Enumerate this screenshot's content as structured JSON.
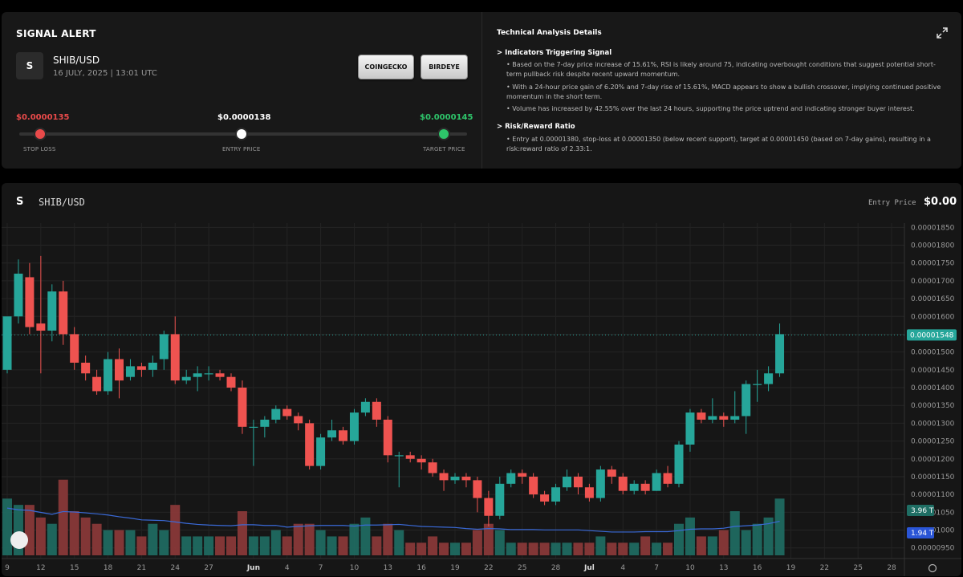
{
  "alert": {
    "heading": "SIGNAL ALERT",
    "token_icon": "S",
    "pair": "SHIB/USD",
    "date": "16 JULY, 2025 | 13:01 UTC",
    "buttons": {
      "coingecko": "COINGECKO",
      "birdeye": "BIRDEYE"
    },
    "prices": {
      "stop_loss": "$0.0000135",
      "entry": "$0.0000138",
      "target": "$0.0000145"
    },
    "labels": {
      "stop_loss": "STOP LOSS",
      "entry": "ENTRY PRICE",
      "target": "TARGET PRICE"
    },
    "colors": {
      "stop": "#e84a4a",
      "target": "#2ec46a",
      "entry": "#ffffff"
    }
  },
  "analysis": {
    "title": "Technical Analysis Details",
    "sections": [
      {
        "title": "> Indicators Triggering Signal",
        "bullets": [
          "• Based on the 7-day price increase of 15.61%, RSI is likely around 75, indicating overbought conditions that suggest potential short-term pullback risk despite recent upward momentum.",
          "• With a 24-hour price gain of 6.20% and 7-day rise of 15.61%, MACD appears to show a bullish crossover, implying continued positive momentum in the short term.",
          "• Volume has increased by 42.55% over the last 24 hours, supporting the price uptrend and indicating stronger buyer interest."
        ]
      },
      {
        "title": "> Risk/Reward Ratio",
        "bullets": [
          "• Entry at 0.00001380, stop-loss at 0.00001350 (below recent support), target at 0.00001450 (based on 7-day gains), resulting in a risk:reward ratio of 2.33:1."
        ]
      }
    ]
  },
  "chart_panel": {
    "icon": "S",
    "title": "SHIB/USD",
    "entry_label": "Entry Price",
    "entry_value": "$0.00"
  },
  "chart_data": {
    "type": "candlestick",
    "up_color": "#26a69a",
    "down_color": "#ef5350",
    "ylim": [
      9.2e-06,
      1.862e-05
    ],
    "y_ticks": [
      "0.00001850",
      "0.00001800",
      "0.00001750",
      "0.00001700",
      "0.00001650",
      "0.00001600",
      "0.00001550",
      "0.00001500",
      "0.00001450",
      "0.00001400",
      "0.00001350",
      "0.00001300",
      "0.00001250",
      "0.00001200",
      "0.00001150",
      "0.00001100",
      "0.00001050",
      "0.00001000",
      "0.00000950"
    ],
    "y_tick_values": [
      1.85e-05,
      1.8e-05,
      1.75e-05,
      1.7e-05,
      1.65e-05,
      1.6e-05,
      1.55e-05,
      1.5e-05,
      1.45e-05,
      1.4e-05,
      1.35e-05,
      1.3e-05,
      1.25e-05,
      1.2e-05,
      1.15e-05,
      1.1e-05,
      1.05e-05,
      1e-05,
      9.5e-06
    ],
    "x_ticks": [
      "9",
      "12",
      "15",
      "18",
      "21",
      "24",
      "27",
      "Jun",
      "4",
      "7",
      "10",
      "13",
      "16",
      "19",
      "22",
      "25",
      "28",
      "Jul",
      "4",
      "7",
      "10",
      "13",
      "16",
      "19",
      "22",
      "25",
      "28"
    ],
    "x_tick_days": [
      0,
      3,
      6,
      9,
      12,
      15,
      18,
      22,
      25,
      28,
      31,
      34,
      37,
      40,
      43,
      46,
      49,
      52,
      55,
      58,
      61,
      64,
      67,
      70,
      73,
      76,
      79
    ],
    "last_price_label": "0.00001548",
    "last_price": 1.548e-05,
    "volume_label": "3.96 T",
    "ma_label": "1.94 T",
    "candles": [
      [
        1.45e-05,
        1.6e-05,
        1.57e-05,
        1.44e-05
      ],
      [
        1.6e-05,
        1.72e-05,
        1.76e-05,
        1.58e-05
      ],
      [
        1.71e-05,
        1.57e-05,
        1.75e-05,
        1.55e-05
      ],
      [
        1.58e-05,
        1.56e-05,
        1.77e-05,
        1.44e-05
      ],
      [
        1.56e-05,
        1.67e-05,
        1.69e-05,
        1.53e-05
      ],
      [
        1.67e-05,
        1.55e-05,
        1.7e-05,
        1.52e-05
      ],
      [
        1.55e-05,
        1.47e-05,
        1.57e-05,
        1.45e-05
      ],
      [
        1.47e-05,
        1.44e-05,
        1.49e-05,
        1.42e-05
      ],
      [
        1.43e-05,
        1.39e-05,
        1.45e-05,
        1.38e-05
      ],
      [
        1.39e-05,
        1.48e-05,
        1.5e-05,
        1.38e-05
      ],
      [
        1.48e-05,
        1.42e-05,
        1.51e-05,
        1.37e-05
      ],
      [
        1.43e-05,
        1.46e-05,
        1.48e-05,
        1.42e-05
      ],
      [
        1.46e-05,
        1.45e-05,
        1.47e-05,
        1.43e-05
      ],
      [
        1.45e-05,
        1.47e-05,
        1.49e-05,
        1.43e-05
      ],
      [
        1.48e-05,
        1.55e-05,
        1.56e-05,
        1.45e-05
      ],
      [
        1.55e-05,
        1.42e-05,
        1.6e-05,
        1.41e-05
      ],
      [
        1.42e-05,
        1.43e-05,
        1.45e-05,
        1.41e-05
      ],
      [
        1.43e-05,
        1.44e-05,
        1.46e-05,
        1.39e-05
      ],
      [
        1.44e-05,
        1.44e-05,
        1.46e-05,
        1.42e-05
      ],
      [
        1.44e-05,
        1.43e-05,
        1.45e-05,
        1.42e-05
      ],
      [
        1.43e-05,
        1.4e-05,
        1.44e-05,
        1.39e-05
      ],
      [
        1.4e-05,
        1.29e-05,
        1.42e-05,
        1.27e-05
      ],
      [
        1.29e-05,
        1.29e-05,
        1.31e-05,
        1.18e-05
      ],
      [
        1.29e-05,
        1.31e-05,
        1.32e-05,
        1.26e-05
      ],
      [
        1.31e-05,
        1.34e-05,
        1.35e-05,
        1.3e-05
      ],
      [
        1.34e-05,
        1.32e-05,
        1.35e-05,
        1.31e-05
      ],
      [
        1.32e-05,
        1.3e-05,
        1.33e-05,
        1.28e-05
      ],
      [
        1.3e-05,
        1.18e-05,
        1.31e-05,
        1.17e-05
      ],
      [
        1.18e-05,
        1.26e-05,
        1.27e-05,
        1.17e-05
      ],
      [
        1.26e-05,
        1.28e-05,
        1.31e-05,
        1.25e-05
      ],
      [
        1.28e-05,
        1.25e-05,
        1.29e-05,
        1.24e-05
      ],
      [
        1.25e-05,
        1.33e-05,
        1.34e-05,
        1.24e-05
      ],
      [
        1.33e-05,
        1.36e-05,
        1.37e-05,
        1.32e-05
      ],
      [
        1.36e-05,
        1.31e-05,
        1.37e-05,
        1.29e-05
      ],
      [
        1.31e-05,
        1.21e-05,
        1.32e-05,
        1.19e-05
      ],
      [
        1.21e-05,
        1.21e-05,
        1.22e-05,
        1.12e-05
      ],
      [
        1.21e-05,
        1.2e-05,
        1.22e-05,
        1.19e-05
      ],
      [
        1.2e-05,
        1.19e-05,
        1.21e-05,
        1.17e-05
      ],
      [
        1.19e-05,
        1.16e-05,
        1.2e-05,
        1.15e-05
      ],
      [
        1.16e-05,
        1.14e-05,
        1.17e-05,
        1.11e-05
      ],
      [
        1.14e-05,
        1.15e-05,
        1.16e-05,
        1.13e-05
      ],
      [
        1.15e-05,
        1.14e-05,
        1.16e-05,
        1.12e-05
      ],
      [
        1.14e-05,
        1.09e-05,
        1.15e-05,
        1.05e-05
      ],
      [
        1.09e-05,
        1.04e-05,
        1.11e-05,
        1.01e-05
      ],
      [
        1.04e-05,
        1.13e-05,
        1.15e-05,
        1.03e-05
      ],
      [
        1.13e-05,
        1.16e-05,
        1.17e-05,
        1.12e-05
      ],
      [
        1.16e-05,
        1.15e-05,
        1.17e-05,
        1.13e-05
      ],
      [
        1.15e-05,
        1.1e-05,
        1.16e-05,
        1.09e-05
      ],
      [
        1.1e-05,
        1.08e-05,
        1.11e-05,
        1.07e-05
      ],
      [
        1.08e-05,
        1.12e-05,
        1.13e-05,
        1.07e-05
      ],
      [
        1.12e-05,
        1.15e-05,
        1.17e-05,
        1.11e-05
      ],
      [
        1.15e-05,
        1.12e-05,
        1.16e-05,
        1.1e-05
      ],
      [
        1.12e-05,
        1.09e-05,
        1.13e-05,
        1.08e-05
      ],
      [
        1.09e-05,
        1.17e-05,
        1.18e-05,
        1.08e-05
      ],
      [
        1.17e-05,
        1.15e-05,
        1.18e-05,
        1.13e-05
      ],
      [
        1.15e-05,
        1.11e-05,
        1.16e-05,
        1.1e-05
      ],
      [
        1.11e-05,
        1.13e-05,
        1.14e-05,
        1.1e-05
      ],
      [
        1.13e-05,
        1.11e-05,
        1.14e-05,
        1.1e-05
      ],
      [
        1.11e-05,
        1.16e-05,
        1.17e-05,
        1.11e-05
      ],
      [
        1.16e-05,
        1.13e-05,
        1.18e-05,
        1.12e-05
      ],
      [
        1.13e-05,
        1.24e-05,
        1.25e-05,
        1.12e-05
      ],
      [
        1.24e-05,
        1.33e-05,
        1.34e-05,
        1.22e-05
      ],
      [
        1.33e-05,
        1.31e-05,
        1.34e-05,
        1.3e-05
      ],
      [
        1.31e-05,
        1.32e-05,
        1.37e-05,
        1.3e-05
      ],
      [
        1.32e-05,
        1.31e-05,
        1.33e-05,
        1.29e-05
      ],
      [
        1.31e-05,
        1.32e-05,
        1.39e-05,
        1.3e-05
      ],
      [
        1.32e-05,
        1.41e-05,
        1.42e-05,
        1.27e-05
      ],
      [
        1.41e-05,
        1.41e-05,
        1.45e-05,
        1.36e-05
      ],
      [
        1.41e-05,
        1.44e-05,
        1.46e-05,
        1.39e-05
      ],
      [
        1.44e-05,
        1.55e-05,
        1.58e-05,
        1.43e-05
      ]
    ],
    "volumes": [
      0.9,
      0.8,
      0.8,
      0.6,
      0.5,
      1.2,
      0.7,
      0.6,
      0.5,
      0.4,
      0.4,
      0.4,
      0.3,
      0.5,
      0.4,
      0.8,
      0.3,
      0.3,
      0.3,
      0.3,
      0.3,
      0.7,
      0.3,
      0.3,
      0.4,
      0.3,
      0.5,
      0.5,
      0.4,
      0.3,
      0.3,
      0.5,
      0.6,
      0.3,
      0.5,
      0.4,
      0.2,
      0.2,
      0.3,
      0.2,
      0.2,
      0.2,
      0.4,
      0.5,
      0.4,
      0.2,
      0.2,
      0.2,
      0.2,
      0.2,
      0.2,
      0.2,
      0.2,
      0.3,
      0.2,
      0.2,
      0.2,
      0.3,
      0.2,
      0.2,
      0.5,
      0.6,
      0.3,
      0.3,
      0.4,
      0.7,
      0.4,
      0.5,
      0.6,
      0.9
    ]
  }
}
